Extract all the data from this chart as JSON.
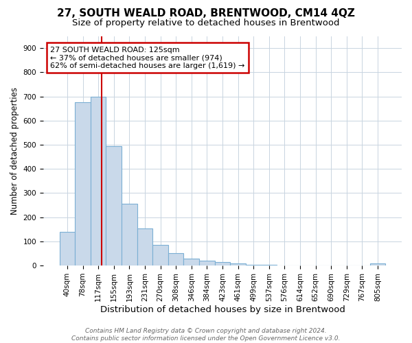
{
  "title": "27, SOUTH WEALD ROAD, BRENTWOOD, CM14 4QZ",
  "subtitle": "Size of property relative to detached houses in Brentwood",
  "xlabel": "Distribution of detached houses by size in Brentwood",
  "ylabel": "Number of detached properties",
  "bar_labels": [
    "40sqm",
    "78sqm",
    "117sqm",
    "155sqm",
    "193sqm",
    "231sqm",
    "270sqm",
    "308sqm",
    "346sqm",
    "384sqm",
    "423sqm",
    "461sqm",
    "499sqm",
    "537sqm",
    "576sqm",
    "614sqm",
    "652sqm",
    "690sqm",
    "729sqm",
    "767sqm",
    "805sqm"
  ],
  "bar_values": [
    140,
    675,
    700,
    495,
    255,
    155,
    85,
    50,
    30,
    20,
    15,
    10,
    3,
    2,
    1,
    1,
    1,
    1,
    0,
    0,
    10
  ],
  "bar_color": "#c9d9ea",
  "bar_edge_color": "#7bafd4",
  "bar_edge_width": 0.8,
  "grid_color": "#c8d4e0",
  "background_color": "#ffffff",
  "annotation_text": "27 SOUTH WEALD ROAD: 125sqm\n← 37% of detached houses are smaller (974)\n62% of semi-detached houses are larger (1,619) →",
  "annotation_box_color": "#ffffff",
  "annotation_box_edge_color": "#cc0000",
  "footer_line1": "Contains HM Land Registry data © Crown copyright and database right 2024.",
  "footer_line2": "Contains public sector information licensed under the Open Government Licence v3.0.",
  "ylim": [
    0,
    950
  ],
  "yticks": [
    0,
    100,
    200,
    300,
    400,
    500,
    600,
    700,
    800,
    900
  ],
  "title_fontsize": 11,
  "subtitle_fontsize": 9.5,
  "xlabel_fontsize": 9.5,
  "ylabel_fontsize": 8.5,
  "tick_fontsize": 7.5,
  "annot_fontsize": 8,
  "footer_fontsize": 6.5
}
